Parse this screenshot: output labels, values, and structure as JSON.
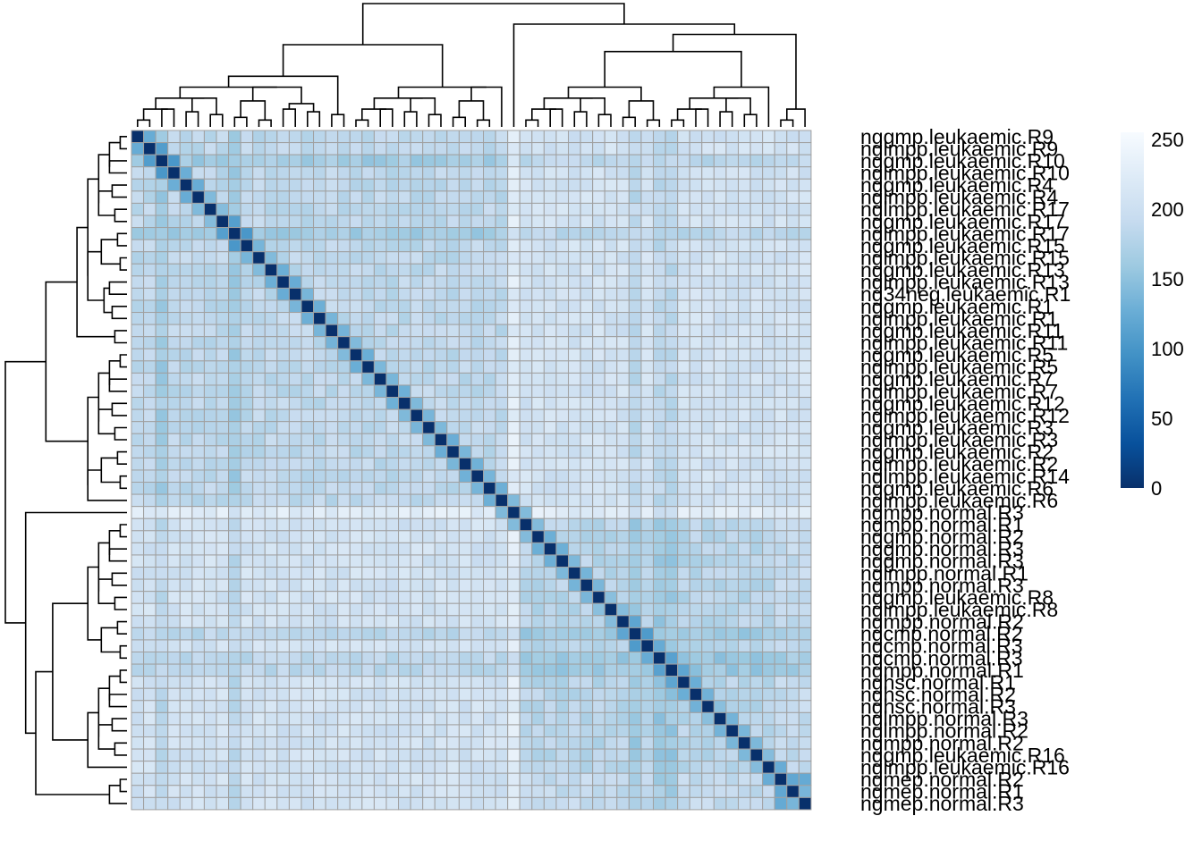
{
  "chart_data": {
    "type": "heatmap",
    "title": "",
    "row_labels": [
      "nggmp.leukaemic.R9",
      "nglmpp.leukaemic.R9",
      "nggmp.leukaemic.R10",
      "nglmpp.leukaemic.R10",
      "nggmp.leukaemic.R4",
      "nglmpp.leukaemic.R4",
      "nglmpp.leukaemic.R17",
      "nggmp.leukaemic.R17",
      "nglmpp.leukaemic.R17",
      "nggmp.leukaemic.R15",
      "nglmpp.leukaemic.R15",
      "nggmp.leukaemic.R13",
      "nglmpp.leukaemic.R13",
      "ng34neg.leukaemic.R1",
      "nggmp.leukaemic.R1",
      "nglmpp.leukaemic.R1",
      "nggmp.leukaemic.R11",
      "nglmpp.leukaemic.R11",
      "nggmp.leukaemic.R5",
      "nglmpp.leukaemic.R5",
      "nggmp.leukaemic.R7",
      "nglmpp.leukaemic.R7",
      "nggmp.leukaemic.R12",
      "nglmpp.leukaemic.R12",
      "nggmp.leukaemic.R3",
      "nglmpp.leukaemic.R3",
      "nggmp.leukaemic.R2",
      "nglmpp.leukaemic.R2",
      "nglmpp.leukaemic.R14",
      "nggmp.leukaemic.R6",
      "nglmpp.leukaemic.R6",
      "ngmpp.normal.R3",
      "ngmpp.normal.R1",
      "nggmp.normal.R2",
      "nggmp.normal.R3",
      "nggmp.normal.R3",
      "nglmpp.normal.R1",
      "ngmpp.normal.R3",
      "nggmp.leukaemic.R8",
      "nglmpp.leukaemic.R8",
      "ngmpp.normal.R2",
      "ngcmp.normal.R2",
      "ngcmp.normal.R3",
      "ngcmp.normal.R3",
      "ngmpp.normal.R1",
      "nghsc.normal.R1",
      "nghsc.normal.R2",
      "nghsc.normal.R3",
      "nglmpp.normal.R3",
      "nglmpp.normal.R2",
      "ngmpp.normal.R2",
      "nggmp.leukaemic.R16",
      "nglmpp.leukaemic.R16",
      "ngmep.normal.R2",
      "ngmep.normal.R1",
      "ngmep.normal.R3"
    ],
    "value_description": "pairwise distance between samples (0 on diagonal)",
    "diagonal_value": 0,
    "typical_off_diagonal": [
      170,
      230
    ],
    "colorbar": {
      "min": 0,
      "max": 255,
      "ticks": [
        0,
        50,
        100,
        150,
        200,
        250
      ],
      "colors": [
        "#08306B",
        "#08519C",
        "#2171B5",
        "#4292C6",
        "#6BAED6",
        "#9ECAE1",
        "#C6DBEF",
        "#DEEBF7",
        "#F7FBFF"
      ]
    },
    "dendrograms": {
      "rows": true,
      "columns": true
    },
    "grid_color": "#A0A0A0"
  }
}
